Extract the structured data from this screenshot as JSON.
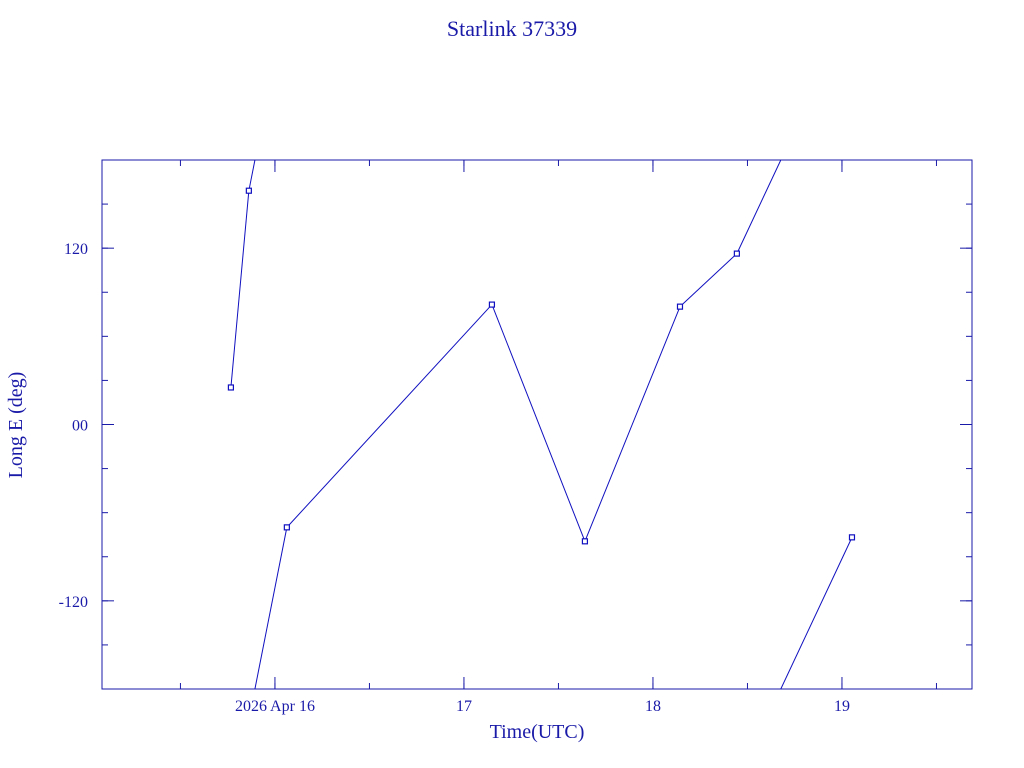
{
  "chart_data": {
    "type": "line",
    "title": "Starlink 37339",
    "x_label": "Time(UTC)",
    "y_label": "Long E (deg)",
    "x": [
      15.767,
      15.862,
      16.063,
      17.148,
      17.64,
      18.143,
      18.444,
      19.053
    ],
    "series": [
      {
        "name": "Long E",
        "color": "#1010c0",
        "values": [
          25.2,
          159.1,
          -70.0,
          81.6,
          -79.5,
          80.2,
          116.3,
          -76.8
        ]
      }
    ],
    "xlim": [
      15.085,
      19.688
    ],
    "xticks": [
      {
        "value": 16,
        "label": "2026 Apr 16"
      },
      17,
      18,
      19
    ],
    "ylim": [
      -180,
      180
    ],
    "yticks": [
      -120,
      {
        "value": 0,
        "label": "00"
      },
      120
    ],
    "wrap_longitude": true
  }
}
